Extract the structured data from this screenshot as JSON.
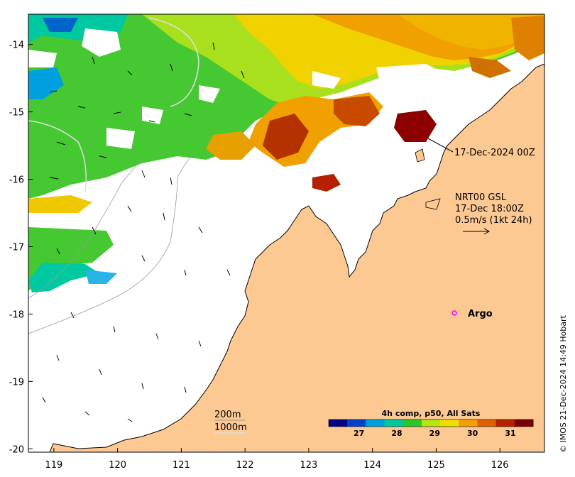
{
  "map": {
    "x_ticks": [
      "119",
      "120",
      "121",
      "122",
      "123",
      "124",
      "125",
      "126"
    ],
    "y_ticks": [
      "-14",
      "-15",
      "-16",
      "-17",
      "-18",
      "-19",
      "-20"
    ],
    "lon_range": [
      118.6,
      126.7
    ],
    "lat_range": [
      -20.05,
      -13.55
    ]
  },
  "annotations": {
    "satellite_time": "17-Dec-2024 00Z",
    "current_product": "NRT00 GSL",
    "current_time": "17-Dec 18:00Z",
    "current_scale": "0.5m/s (1kt 24h)",
    "argo": "Argo",
    "iso_200": "200m",
    "iso_1000": "1000m",
    "credit": "© IMOS 21-Dec-2024 14:49 Hobart"
  },
  "colorbar": {
    "title": "4h comp, p50, All Sats",
    "ticks": [
      "27",
      "28",
      "29",
      "30",
      "31"
    ],
    "range": [
      26.2,
      31.6
    ],
    "colors": [
      "#00008b",
      "#0044cc",
      "#00a0e0",
      "#00c8a0",
      "#28c828",
      "#b4e614",
      "#f0e000",
      "#f0a000",
      "#e06000",
      "#b42000",
      "#780000"
    ]
  },
  "colors": {
    "land": "#fdc993",
    "coast": "#000000",
    "argo_marker": "#ff00ff"
  }
}
